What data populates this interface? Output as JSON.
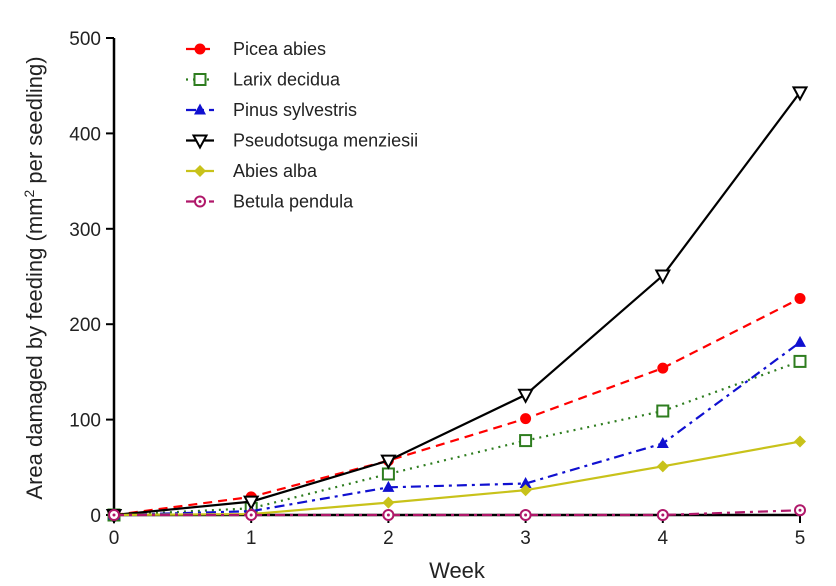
{
  "chart_data": {
    "type": "line",
    "xlabel": "Week",
    "ylabel_main": "Area damaged by feeding (mm",
    "ylabel_sup": "2",
    "ylabel_end": " per seedling)",
    "xlim": [
      0,
      5
    ],
    "ylim": [
      0,
      500
    ],
    "x_ticks": [
      "0",
      "1",
      "2",
      "3",
      "4",
      "5"
    ],
    "y_ticks": [
      "0",
      "100",
      "200",
      "300",
      "400",
      "500"
    ],
    "x": [
      0,
      1,
      2,
      3,
      4,
      5
    ],
    "grid": false,
    "legend_position": "top-left",
    "series": [
      {
        "name": "Picea abies",
        "values": [
          0,
          19,
          57,
          101,
          154,
          227
        ],
        "color": "#ff0000",
        "dash": "dashed",
        "marker": "filled-circle"
      },
      {
        "name": "Larix decidua",
        "values": [
          0,
          7,
          43,
          78,
          109,
          161
        ],
        "color": "#2e7d1f",
        "dash": "dotted",
        "marker": "open-square"
      },
      {
        "name": "Pinus sylvestris",
        "values": [
          0,
          4,
          29,
          33,
          75,
          181
        ],
        "color": "#1010d0",
        "dash": "dash-dot",
        "marker": "filled-triangle"
      },
      {
        "name": "Pseudotsuga menziesii",
        "values": [
          0,
          14,
          57,
          126,
          251,
          443
        ],
        "color": "#000000",
        "dash": "solid",
        "marker": "open-triangle-down"
      },
      {
        "name": "Abies alba",
        "values": [
          0,
          1,
          13,
          26,
          51,
          77
        ],
        "color": "#c8c21a",
        "dash": "solid",
        "marker": "filled-diamond"
      },
      {
        "name": "Betula pendula",
        "values": [
          0,
          0,
          0,
          0,
          0,
          5
        ],
        "color": "#b0186a",
        "dash": "dash-dot",
        "marker": "open-circle-dot"
      }
    ]
  }
}
